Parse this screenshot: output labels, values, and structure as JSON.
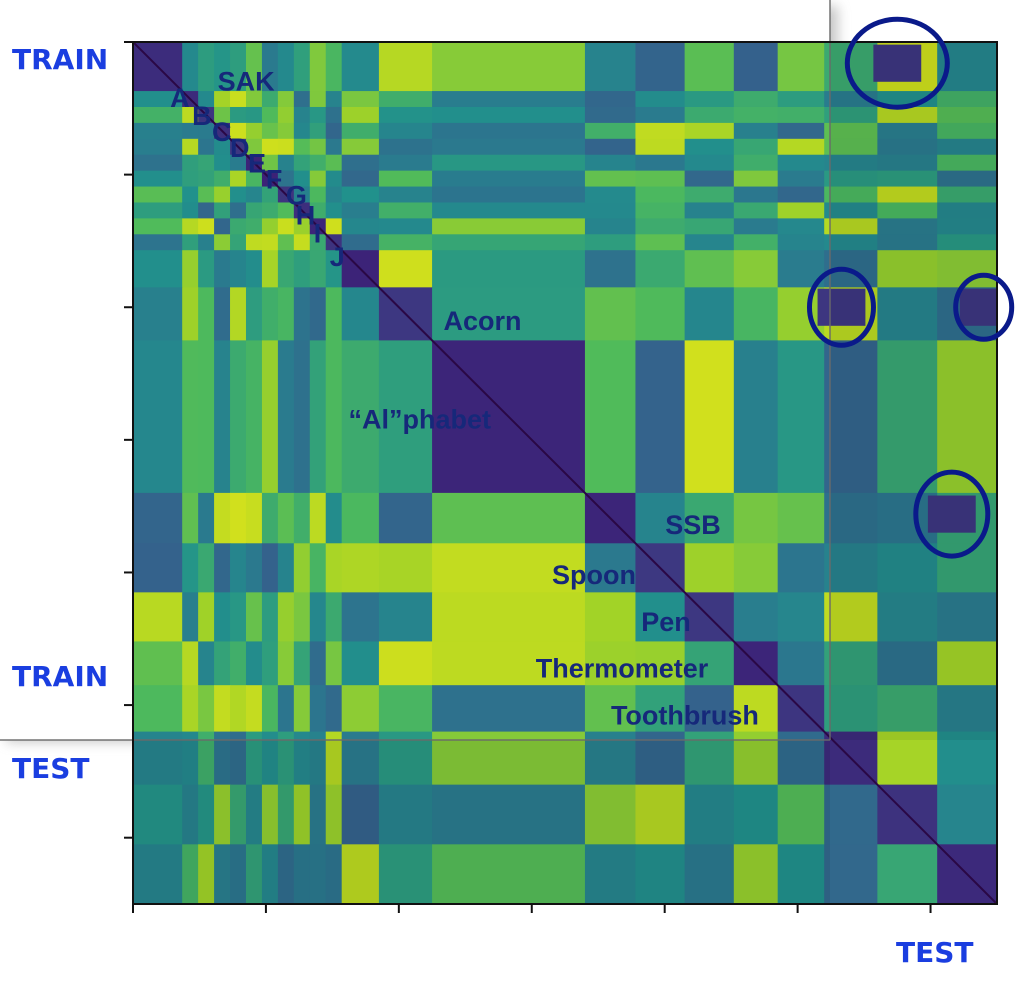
{
  "chart_data": {
    "type": "heatmap",
    "title": "",
    "xlabel": "",
    "ylabel": "",
    "matrix_size": 650,
    "train_range": [
      0,
      520
    ],
    "test_range": [
      520,
      650
    ],
    "tick_values": [
      0,
      100,
      200,
      300,
      400,
      500,
      600
    ],
    "axis_text": {
      "train_top": "TRAIN",
      "train_bottom": "TRAIN",
      "test_left": "TEST",
      "test_bottom": "TEST"
    },
    "clusters": [
      {
        "name": "SAK",
        "start": 0,
        "end": 37
      },
      {
        "name": "A",
        "start": 37,
        "end": 49
      },
      {
        "name": "B",
        "start": 49,
        "end": 61
      },
      {
        "name": "C",
        "start": 61,
        "end": 73
      },
      {
        "name": "D",
        "start": 73,
        "end": 85
      },
      {
        "name": "E",
        "start": 85,
        "end": 97
      },
      {
        "name": "F",
        "start": 97,
        "end": 109
      },
      {
        "name": "G",
        "start": 109,
        "end": 121
      },
      {
        "name": "H",
        "start": 121,
        "end": 133
      },
      {
        "name": "I",
        "start": 133,
        "end": 145
      },
      {
        "name": "J",
        "start": 145,
        "end": 157
      },
      {
        "name": "Acorn",
        "start": 185,
        "end": 225
      },
      {
        "name": "“Al”phabet",
        "start": 225,
        "end": 340
      },
      {
        "name": "SSB",
        "start": 340,
        "end": 378
      },
      {
        "name": "Spoon",
        "start": 378,
        "end": 415
      },
      {
        "name": "Pen",
        "start": 415,
        "end": 452
      },
      {
        "name": "Thermometer",
        "start": 452,
        "end": 485
      },
      {
        "name": "Toothbrush",
        "start": 485,
        "end": 520
      }
    ],
    "highlights": [
      {
        "name": "SAK-test-match",
        "row": 16,
        "col": 575
      },
      {
        "name": "Acorn-test-match-1",
        "row": 200,
        "col": 533
      },
      {
        "name": "Acorn-test-match-2",
        "row": 200,
        "col": 640
      },
      {
        "name": "SSB-test-match",
        "row": 356,
        "col": 616
      }
    ],
    "colormap": {
      "low": "#3b0f6f",
      "mid": "#21908d",
      "high": "#d7e21a"
    }
  },
  "colors": {
    "axis_label_blue": "#1a3ee0",
    "cluster_label_navy": "#16287a",
    "circle_navy": "#0a1a8a"
  }
}
